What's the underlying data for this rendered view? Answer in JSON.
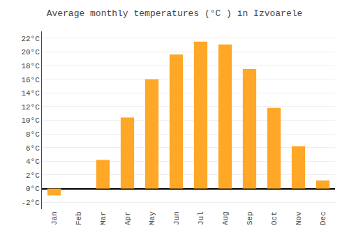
{
  "chart_data": {
    "type": "bar",
    "title": "Average monthly temperatures (°C ) in Izvoarele",
    "categories": [
      "Jan",
      "Feb",
      "Mar",
      "Apr",
      "May",
      "Jun",
      "Jul",
      "Aug",
      "Sep",
      "Oct",
      "Nov",
      "Dec"
    ],
    "values": [
      -1.0,
      0.0,
      4.2,
      10.4,
      16.0,
      19.6,
      21.5,
      21.1,
      17.5,
      11.8,
      6.2,
      1.2
    ],
    "color": "#FFA726",
    "ylim": [
      -3,
      23
    ],
    "yticks": [
      {
        "value": -2,
        "label": "-2°C"
      },
      {
        "value": 0,
        "label": "0°C"
      },
      {
        "value": 2,
        "label": "2°C"
      },
      {
        "value": 4,
        "label": "4°C"
      },
      {
        "value": 6,
        "label": "6°C"
      },
      {
        "value": 8,
        "label": "8°C"
      },
      {
        "value": 10,
        "label": "10°C"
      },
      {
        "value": 12,
        "label": "12°C"
      },
      {
        "value": 14,
        "label": "14°C"
      },
      {
        "value": 16,
        "label": "16°C"
      },
      {
        "value": 18,
        "label": "18°C"
      },
      {
        "value": 20,
        "label": "20°C"
      },
      {
        "value": 22,
        "label": "22°C"
      }
    ],
    "grid": true
  }
}
